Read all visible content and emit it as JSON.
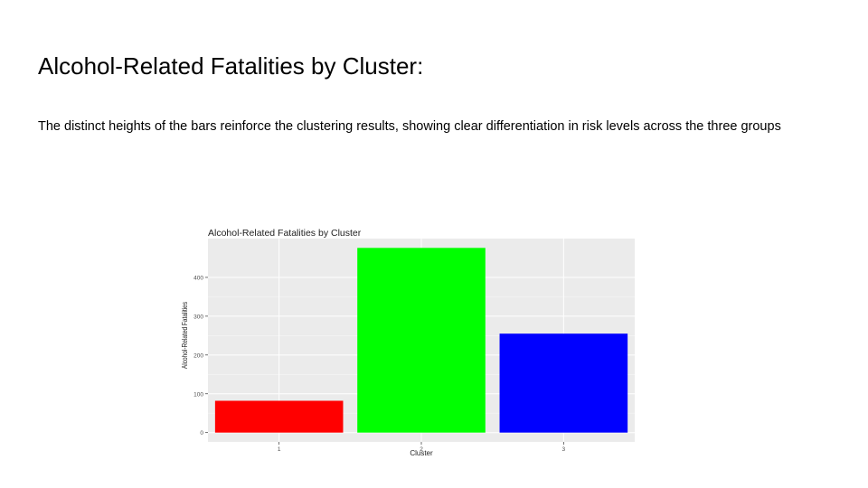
{
  "slide": {
    "title": "Alcohol-Related Fatalities by Cluster:",
    "body": "The distinct heights of the bars reinforce the clustering results, showing clear differentiation in risk levels across the three groups"
  },
  "chart_data": {
    "type": "bar",
    "title": "Alcohol-Related Fatalities by Cluster",
    "xlabel": "Cluster",
    "ylabel": "Alcohol-Related Fatalities",
    "categories": [
      "1",
      "2",
      "3"
    ],
    "values": [
      82,
      476,
      255
    ],
    "colors": [
      "#ff0000",
      "#00ff00",
      "#0000ff"
    ],
    "yticks": [
      0,
      100,
      200,
      300,
      400
    ],
    "ylim": [
      -24,
      500
    ],
    "grid": true,
    "legend": "none",
    "panel_background": "#ebebeb"
  }
}
